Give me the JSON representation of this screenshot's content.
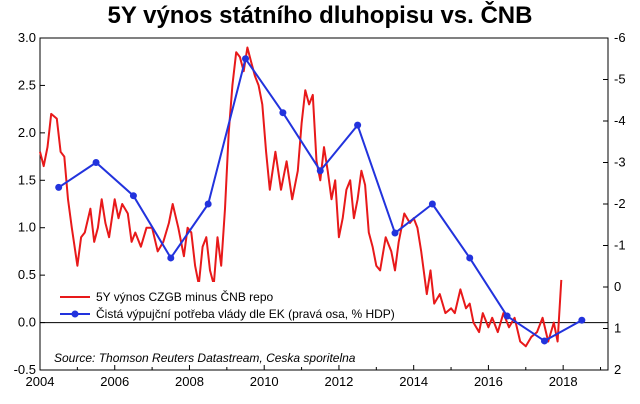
{
  "chart_data": {
    "type": "line",
    "title": "5Y výnos státního dluhopisu vs. ČNB",
    "source": "Source: Thomson Reuters Datastream, Ceska sporitelna",
    "x_ticks": [
      "2004",
      "2006",
      "2008",
      "2010",
      "2012",
      "2014",
      "2016",
      "2018"
    ],
    "xlim": [
      2004.0,
      2019.2
    ],
    "y_left_ticks": [
      "3.0",
      "2.5",
      "2.0",
      "1.5",
      "1.0",
      "0.5",
      "0.0",
      "-0.5"
    ],
    "y_left_lim": [
      -0.5,
      3.0
    ],
    "y_right_ticks": [
      "-6",
      "-5",
      "-4",
      "-3",
      "-2",
      "-1",
      "0",
      "1",
      "2"
    ],
    "y_right_lim": [
      2,
      -6
    ],
    "y_right_inverted": true,
    "grid": false,
    "legend_position": "bottom-left",
    "series": [
      {
        "name": "5Y výnos CZGB minus ČNB repo",
        "color": "#e8191a",
        "axis": "left",
        "style": "line",
        "x": [
          2004.0,
          2004.1,
          2004.2,
          2004.3,
          2004.45,
          2004.55,
          2004.65,
          2004.75,
          2004.85,
          2005.0,
          2005.1,
          2005.2,
          2005.35,
          2005.45,
          2005.55,
          2005.65,
          2005.75,
          2005.85,
          2006.0,
          2006.1,
          2006.2,
          2006.35,
          2006.45,
          2006.55,
          2006.7,
          2006.85,
          2007.0,
          2007.15,
          2007.3,
          2007.45,
          2007.55,
          2007.7,
          2007.85,
          2007.95,
          2008.05,
          2008.15,
          2008.25,
          2008.35,
          2008.45,
          2008.55,
          2008.65,
          2008.75,
          2008.85,
          2008.95,
          2009.05,
          2009.15,
          2009.25,
          2009.35,
          2009.45,
          2009.55,
          2009.65,
          2009.75,
          2009.85,
          2009.95,
          2010.05,
          2010.15,
          2010.3,
          2010.45,
          2010.6,
          2010.75,
          2010.9,
          2011.0,
          2011.1,
          2011.2,
          2011.3,
          2011.4,
          2011.5,
          2011.6,
          2011.7,
          2011.8,
          2011.9,
          2012.0,
          2012.1,
          2012.2,
          2012.3,
          2012.4,
          2012.5,
          2012.6,
          2012.7,
          2012.8,
          2012.9,
          2013.0,
          2013.1,
          2013.25,
          2013.4,
          2013.5,
          2013.6,
          2013.75,
          2013.9,
          2014.0,
          2014.1,
          2014.2,
          2014.35,
          2014.45,
          2014.55,
          2014.7,
          2014.85,
          2015.0,
          2015.1,
          2015.25,
          2015.4,
          2015.5,
          2015.6,
          2015.75,
          2015.85,
          2016.0,
          2016.1,
          2016.25,
          2016.4,
          2016.55,
          2016.7,
          2016.85,
          2017.0,
          2017.15,
          2017.3,
          2017.45,
          2017.6,
          2017.75,
          2017.85,
          2017.95
        ],
        "values": [
          1.8,
          1.65,
          1.85,
          2.2,
          2.15,
          1.8,
          1.75,
          1.3,
          1.0,
          0.6,
          0.9,
          0.95,
          1.2,
          0.85,
          1.0,
          1.3,
          1.05,
          0.9,
          1.3,
          1.1,
          1.25,
          1.15,
          0.85,
          0.95,
          0.8,
          1.0,
          1.0,
          0.75,
          0.85,
          1.05,
          1.25,
          1.0,
          0.7,
          1.0,
          0.95,
          0.6,
          0.4,
          0.8,
          0.9,
          0.55,
          0.4,
          0.9,
          0.6,
          1.2,
          2.0,
          2.5,
          2.85,
          2.8,
          2.65,
          2.9,
          2.75,
          2.6,
          2.5,
          2.3,
          1.8,
          1.4,
          1.8,
          1.4,
          1.7,
          1.3,
          1.6,
          2.1,
          2.45,
          2.3,
          2.4,
          1.7,
          1.5,
          1.85,
          1.6,
          1.3,
          1.5,
          0.9,
          1.1,
          1.4,
          1.5,
          1.1,
          1.3,
          1.6,
          1.45,
          0.95,
          0.8,
          0.6,
          0.55,
          0.9,
          0.75,
          0.55,
          0.85,
          1.15,
          1.05,
          1.1,
          1.0,
          0.75,
          0.3,
          0.55,
          0.2,
          0.3,
          0.1,
          0.15,
          0.1,
          0.35,
          0.15,
          0.2,
          0.0,
          -0.1,
          0.1,
          -0.05,
          0.05,
          -0.1,
          0.1,
          -0.05,
          0.05,
          -0.2,
          -0.25,
          -0.15,
          -0.1,
          0.05,
          -0.2,
          0.0,
          -0.2,
          0.45
        ]
      },
      {
        "name": "Čistá výpujční potřeba vlády dle EK (pravá osa, % HDP)",
        "color": "#2233dd",
        "axis": "right",
        "style": "line-markers",
        "x": [
          2004.5,
          2005.5,
          2006.5,
          2007.5,
          2008.5,
          2009.5,
          2010.5,
          2011.5,
          2012.5,
          2013.5,
          2014.5,
          2015.5,
          2016.5,
          2017.5,
          2018.5
        ],
        "values": [
          -2.4,
          -3.0,
          -2.2,
          -0.7,
          -2.0,
          -5.5,
          -4.2,
          -2.8,
          -3.9,
          -1.3,
          -2.0,
          -0.7,
          0.7,
          1.3,
          0.8
        ]
      }
    ]
  }
}
